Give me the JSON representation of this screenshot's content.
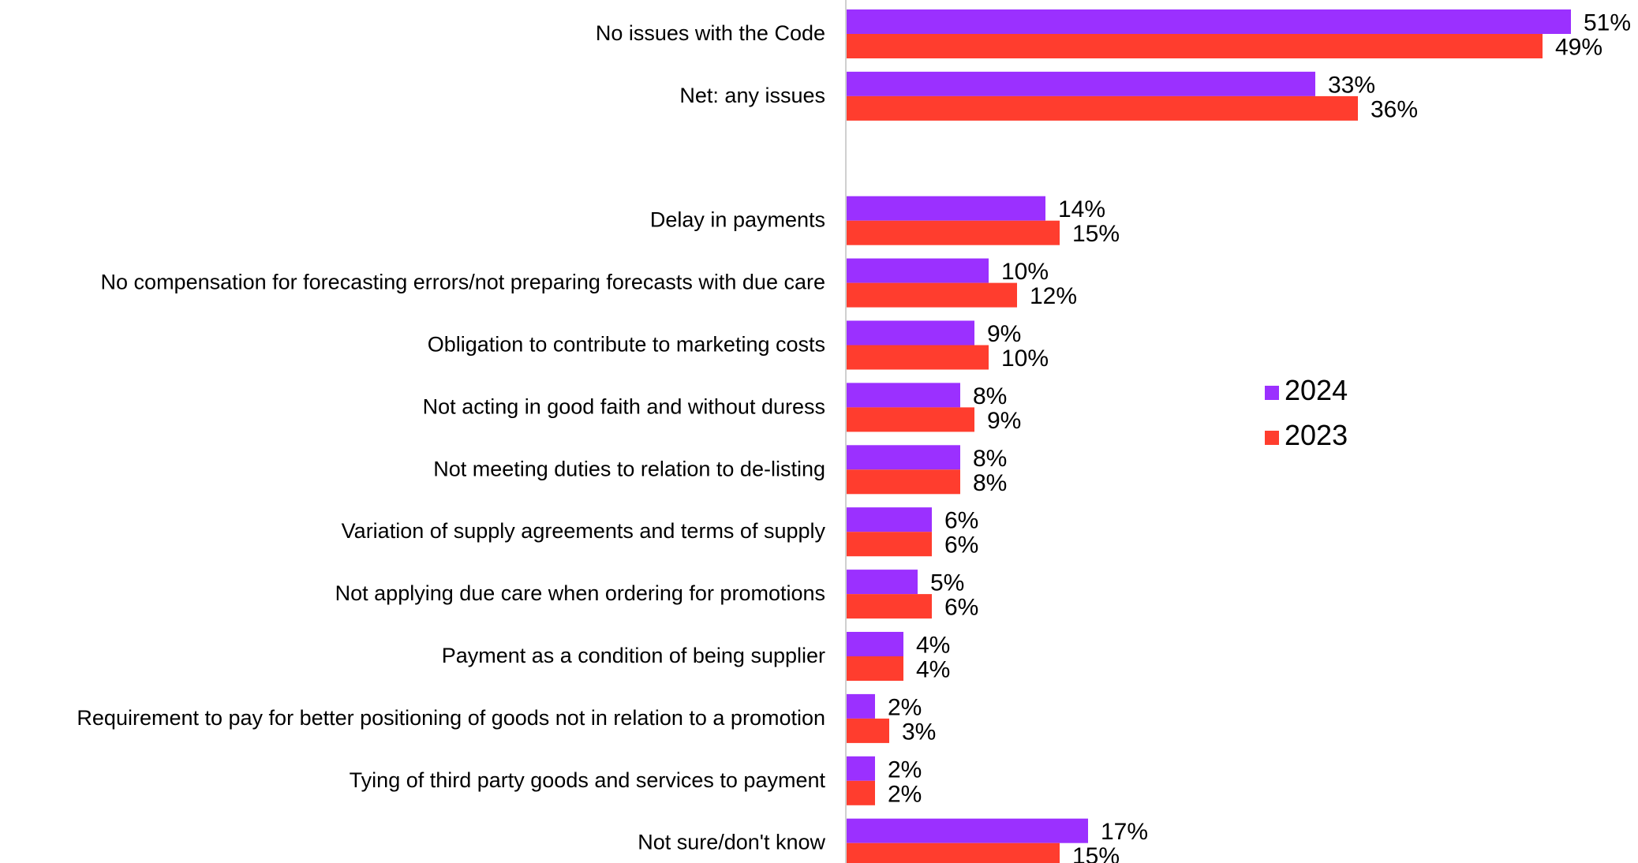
{
  "colors": {
    "series_2024": "#9B30FF",
    "series_2023": "#FF3D2E",
    "axis": "#D0D0D0"
  },
  "chart_data": {
    "type": "bar",
    "orientation": "horizontal",
    "title": "",
    "xlabel": "",
    "ylabel": "",
    "xlim": [
      0,
      55
    ],
    "grid": false,
    "legend_position": "right",
    "categories": [
      "No issues with the Code",
      "Net: any issues",
      "",
      "Delay in payments",
      "No compensation for forecasting errors/not preparing forecasts with due care",
      "Obligation to contribute to marketing costs",
      "Not acting in good faith and without duress",
      "Not meeting duties to relation to de-listing",
      "Variation of supply agreements and terms of supply",
      "Not applying due care when ordering for promotions",
      "Payment as a condition of being supplier",
      "Requirement to pay for better positioning of goods not in relation to a promotion",
      "Tying of third party goods and services to payment",
      "Not sure/don't know"
    ],
    "series": [
      {
        "name": "2024",
        "color": "#9B30FF",
        "values": [
          51,
          33,
          null,
          14,
          10,
          9,
          8,
          8,
          6,
          5,
          4,
          2,
          2,
          17
        ],
        "labels": [
          "51%",
          "33%",
          "",
          "14%",
          "10%",
          "9%",
          "8%",
          "8%",
          "6%",
          "5%",
          "4%",
          "2%",
          "2%",
          "17%"
        ]
      },
      {
        "name": "2023",
        "color": "#FF3D2E",
        "values": [
          49,
          36,
          null,
          15,
          12,
          10,
          9,
          8,
          6,
          6,
          4,
          3,
          2,
          15
        ],
        "labels": [
          "49%",
          "36%",
          "",
          "15%",
          "12%",
          "10%",
          "9%",
          "8%",
          "6%",
          "6%",
          "4%",
          "3%",
          "2%",
          "15%"
        ]
      }
    ]
  }
}
